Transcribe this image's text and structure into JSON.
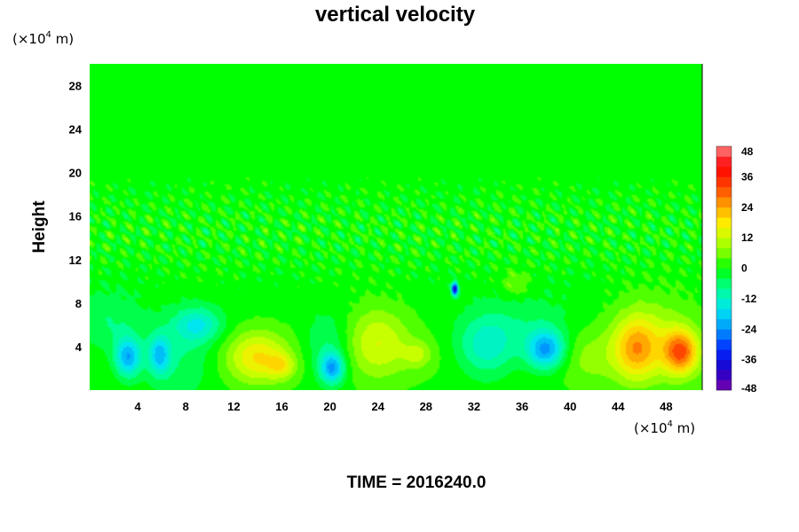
{
  "chart_data": {
    "type": "heatmap",
    "title": "vertical velocity",
    "ylabel": "Height",
    "xlabel": "",
    "x_unit": {
      "prefix": "(×10",
      "exp": "4",
      "suffix": " m)"
    },
    "y_unit": {
      "prefix": "(×10",
      "exp": "4",
      "suffix": " m)"
    },
    "footer": "TIME = 2016240.0",
    "xlim": [
      0,
      51
    ],
    "ylim": [
      0,
      30
    ],
    "x_ticks": [
      4,
      8,
      12,
      16,
      20,
      24,
      28,
      32,
      36,
      40,
      44,
      48
    ],
    "y_ticks": [
      4,
      8,
      12,
      16,
      20,
      24,
      28
    ],
    "colorbar": {
      "range": [
        -48,
        48
      ],
      "ticks": [
        48,
        36,
        24,
        12,
        0,
        -12,
        -24,
        -36,
        -48
      ]
    },
    "features": [
      {
        "x": 3.2,
        "y": 3.0,
        "sx": 1.1,
        "sy": 1.8,
        "value": -22
      },
      {
        "x": 5.8,
        "y": 3.2,
        "sx": 0.9,
        "sy": 1.8,
        "value": -18
      },
      {
        "x": 9.0,
        "y": 6.0,
        "sx": 2.0,
        "sy": 1.6,
        "value": -14
      },
      {
        "x": 7.5,
        "y": 3.0,
        "sx": 3.0,
        "sy": 3.5,
        "value": -8
      },
      {
        "x": 1.5,
        "y": 6.0,
        "sx": 3.0,
        "sy": 3.0,
        "value": -7
      },
      {
        "x": 14.0,
        "y": 3.0,
        "sx": 2.5,
        "sy": 2.3,
        "value": 16
      },
      {
        "x": 16.0,
        "y": 2.2,
        "sx": 1.1,
        "sy": 1.1,
        "value": 10
      },
      {
        "x": 20.2,
        "y": 2.0,
        "sx": 1.0,
        "sy": 1.4,
        "value": -22
      },
      {
        "x": 19.8,
        "y": 4.0,
        "sx": 2.0,
        "sy": 3.0,
        "value": -8
      },
      {
        "x": 24.0,
        "y": 4.5,
        "sx": 2.6,
        "sy": 3.2,
        "value": 12
      },
      {
        "x": 27.3,
        "y": 3.3,
        "sx": 1.2,
        "sy": 1.2,
        "value": 8
      },
      {
        "x": 30.4,
        "y": 9.3,
        "sx": 0.25,
        "sy": 0.6,
        "value": -42
      },
      {
        "x": 33.0,
        "y": 4.0,
        "sx": 2.5,
        "sy": 2.8,
        "value": -14
      },
      {
        "x": 38.0,
        "y": 3.7,
        "sx": 1.6,
        "sy": 1.8,
        "value": -24
      },
      {
        "x": 36.5,
        "y": 6.0,
        "sx": 4.0,
        "sy": 3.0,
        "value": -5
      },
      {
        "x": 35.5,
        "y": 9.8,
        "sx": 1.2,
        "sy": 1.2,
        "value": 7
      },
      {
        "x": 45.5,
        "y": 3.8,
        "sx": 1.8,
        "sy": 2.8,
        "value": 18
      },
      {
        "x": 49.2,
        "y": 3.5,
        "sx": 1.4,
        "sy": 2.0,
        "value": 26
      },
      {
        "x": 47.0,
        "y": 5.0,
        "sx": 3.5,
        "sy": 4.0,
        "value": 8
      },
      {
        "x": 41.5,
        "y": 3.0,
        "sx": 2.5,
        "sy": 2.5,
        "value": 5
      }
    ]
  }
}
